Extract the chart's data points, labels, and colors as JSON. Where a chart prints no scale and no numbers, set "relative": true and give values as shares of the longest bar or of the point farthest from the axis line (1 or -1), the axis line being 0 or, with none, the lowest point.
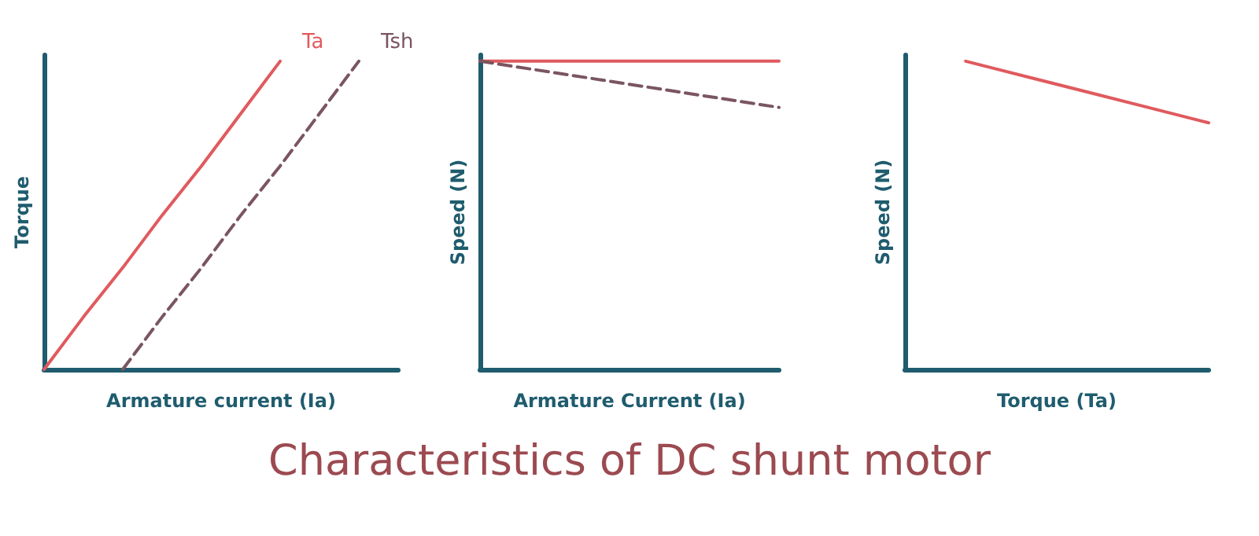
{
  "chart_data": [
    {
      "type": "line",
      "relative": true,
      "ylabel": "Torque",
      "xlabel": "Armature current (Ia)",
      "categories": [
        null,
        null,
        null,
        null,
        null,
        null,
        null,
        null,
        null,
        null
      ],
      "legend": false,
      "marker": "none",
      "grid": false,
      "series": [
        {
          "name": "Ta",
          "color": "#e05a5e",
          "line_style": "solid",
          "values": [
            0,
            0.17,
            0.33,
            0.5,
            0.66,
            0.83,
            1,
            null,
            null,
            null
          ]
        },
        {
          "name": "Tsh",
          "color": "#7a5560",
          "line_style": "dashed",
          "values": [
            null,
            null,
            0,
            0.17,
            0.33,
            0.5,
            0.66,
            0.83,
            1,
            null
          ]
        }
      ]
    },
    {
      "type": "line",
      "relative": true,
      "ylabel": "Speed (N)",
      "xlabel": "Armature Current (Ia)",
      "categories": [
        null,
        null
      ],
      "legend": false,
      "marker": "none",
      "grid": false,
      "series": [
        {
          "color": "#e05a5e",
          "line_style": "solid",
          "values": [
            1,
            1
          ]
        },
        {
          "color": "#7a5560",
          "line_style": "dashed",
          "values": [
            1,
            0.85
          ]
        }
      ]
    },
    {
      "type": "line",
      "relative": true,
      "ylabel": "Speed (N)",
      "xlabel": "Torque (Ta)",
      "categories": [
        null,
        null,
        null,
        null,
        null,
        null
      ],
      "legend": false,
      "marker": "none",
      "grid": false,
      "series": [
        {
          "color": "#e05a5e",
          "line_style": "solid",
          "values": [
            null,
            1,
            0.95,
            0.9,
            0.85,
            0.8
          ]
        }
      ]
    },
    {
      "type": "other",
      "title": "Characteristics of DC shunt motor"
    }
  ]
}
